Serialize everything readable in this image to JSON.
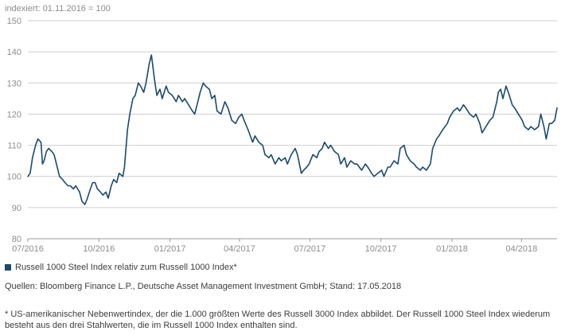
{
  "colors": {
    "line": "#1b4a6b",
    "grid": "#cfcfcf",
    "axis_text": "#8c8c8c",
    "text": "#3c3c3c"
  },
  "legend": {
    "label": "Russell 1000 Steel Index relativ zum Russell 1000 Index*"
  },
  "sources": "Quellen: Bloomberg Finance L.P., Deutsche Asset Management Investment GmbH; Stand: 17.05.2018",
  "footnote": "* US-amerikanischer Nebenwertindex, der die 1.000 größten Werte des Russell 3000 Index abbildet. Der Russell 1000 Steel Index wiederum besteht aus den drei Stahlwerten, die im Russell 1000 Index enthalten sind.",
  "chart_data": {
    "type": "line",
    "ylabel": "indexiert: 01.11.2016 = 100",
    "ylim": [
      80,
      150
    ],
    "yticks": [
      80,
      90,
      100,
      110,
      120,
      130,
      140,
      150
    ],
    "xlim": [
      "2016-07-01",
      "2018-05-17"
    ],
    "xticks": [
      {
        "label": "07/2016",
        "date": "2016-07-01"
      },
      {
        "label": "10/2016",
        "date": "2016-10-01"
      },
      {
        "label": "01/2017",
        "date": "2017-01-01"
      },
      {
        "label": "04/2017",
        "date": "2017-04-01"
      },
      {
        "label": "07/2017",
        "date": "2017-07-01"
      },
      {
        "label": "10/2017",
        "date": "2017-10-01"
      },
      {
        "label": "01/2018",
        "date": "2018-01-01"
      },
      {
        "label": "04/2018",
        "date": "2018-04-01"
      }
    ],
    "grid": "horizontal",
    "legend_position": "bottom-left",
    "series": [
      {
        "name": "Russell 1000 Steel Index relativ zum Russell 1000 Index*",
        "points": [
          [
            "2016-07-01",
            100
          ],
          [
            "2016-07-04",
            101
          ],
          [
            "2016-07-07",
            106
          ],
          [
            "2016-07-11",
            110
          ],
          [
            "2016-07-14",
            112
          ],
          [
            "2016-07-18",
            111
          ],
          [
            "2016-07-20",
            104
          ],
          [
            "2016-07-22",
            105
          ],
          [
            "2016-07-25",
            108
          ],
          [
            "2016-07-28",
            109
          ],
          [
            "2016-08-01",
            108
          ],
          [
            "2016-08-04",
            107
          ],
          [
            "2016-08-08",
            103
          ],
          [
            "2016-08-11",
            100
          ],
          [
            "2016-08-15",
            99
          ],
          [
            "2016-08-18",
            98
          ],
          [
            "2016-08-22",
            97
          ],
          [
            "2016-08-25",
            97
          ],
          [
            "2016-08-29",
            96
          ],
          [
            "2016-09-01",
            97
          ],
          [
            "2016-09-06",
            95
          ],
          [
            "2016-09-09",
            92
          ],
          [
            "2016-09-13",
            91
          ],
          [
            "2016-09-16",
            93
          ],
          [
            "2016-09-20",
            96
          ],
          [
            "2016-09-23",
            98
          ],
          [
            "2016-09-26",
            98
          ],
          [
            "2016-09-29",
            96
          ],
          [
            "2016-10-03",
            95
          ],
          [
            "2016-10-06",
            94
          ],
          [
            "2016-10-10",
            95
          ],
          [
            "2016-10-13",
            93
          ],
          [
            "2016-10-17",
            97
          ],
          [
            "2016-10-20",
            99
          ],
          [
            "2016-10-24",
            98
          ],
          [
            "2016-10-27",
            101
          ],
          [
            "2016-11-01",
            100
          ],
          [
            "2016-11-03",
            103
          ],
          [
            "2016-11-07",
            115
          ],
          [
            "2016-11-10",
            120
          ],
          [
            "2016-11-14",
            125
          ],
          [
            "2016-11-17",
            126
          ],
          [
            "2016-11-21",
            130
          ],
          [
            "2016-11-24",
            129
          ],
          [
            "2016-11-28",
            127
          ],
          [
            "2016-12-01",
            130
          ],
          [
            "2016-12-05",
            136
          ],
          [
            "2016-12-08",
            139
          ],
          [
            "2016-12-12",
            131
          ],
          [
            "2016-12-15",
            126
          ],
          [
            "2016-12-19",
            128
          ],
          [
            "2016-12-22",
            125
          ],
          [
            "2016-12-27",
            129
          ],
          [
            "2016-12-30",
            127
          ],
          [
            "2017-01-04",
            126
          ],
          [
            "2017-01-09",
            124
          ],
          [
            "2017-01-12",
            126
          ],
          [
            "2017-01-17",
            124
          ],
          [
            "2017-01-20",
            125
          ],
          [
            "2017-01-25",
            123
          ],
          [
            "2017-01-30",
            121
          ],
          [
            "2017-02-02",
            120
          ],
          [
            "2017-02-06",
            124
          ],
          [
            "2017-02-09",
            127
          ],
          [
            "2017-02-13",
            130
          ],
          [
            "2017-02-16",
            129
          ],
          [
            "2017-02-21",
            128
          ],
          [
            "2017-02-24",
            125
          ],
          [
            "2017-02-28",
            126
          ],
          [
            "2017-03-03",
            121
          ],
          [
            "2017-03-08",
            120
          ],
          [
            "2017-03-13",
            124
          ],
          [
            "2017-03-17",
            122
          ],
          [
            "2017-03-22",
            118
          ],
          [
            "2017-03-27",
            117
          ],
          [
            "2017-03-31",
            119
          ],
          [
            "2017-04-04",
            120
          ],
          [
            "2017-04-07",
            118
          ],
          [
            "2017-04-12",
            115
          ],
          [
            "2017-04-18",
            111
          ],
          [
            "2017-04-21",
            113
          ],
          [
            "2017-04-26",
            111
          ],
          [
            "2017-05-01",
            110
          ],
          [
            "2017-05-04",
            107
          ],
          [
            "2017-05-09",
            106
          ],
          [
            "2017-05-12",
            107
          ],
          [
            "2017-05-17",
            104
          ],
          [
            "2017-05-22",
            106
          ],
          [
            "2017-05-25",
            105
          ],
          [
            "2017-05-30",
            106
          ],
          [
            "2017-06-02",
            104
          ],
          [
            "2017-06-07",
            107
          ],
          [
            "2017-06-12",
            109
          ],
          [
            "2017-06-15",
            107
          ],
          [
            "2017-06-20",
            101
          ],
          [
            "2017-06-23",
            102
          ],
          [
            "2017-06-27",
            103
          ],
          [
            "2017-06-30",
            104
          ],
          [
            "2017-07-05",
            107
          ],
          [
            "2017-07-10",
            106
          ],
          [
            "2017-07-13",
            108
          ],
          [
            "2017-07-17",
            109
          ],
          [
            "2017-07-20",
            111
          ],
          [
            "2017-07-25",
            109
          ],
          [
            "2017-07-28",
            110
          ],
          [
            "2017-08-02",
            108
          ],
          [
            "2017-08-07",
            107
          ],
          [
            "2017-08-10",
            104
          ],
          [
            "2017-08-15",
            106
          ],
          [
            "2017-08-18",
            103
          ],
          [
            "2017-08-23",
            105
          ],
          [
            "2017-08-28",
            104
          ],
          [
            "2017-08-31",
            104
          ],
          [
            "2017-09-06",
            102
          ],
          [
            "2017-09-11",
            104
          ],
          [
            "2017-09-14",
            103
          ],
          [
            "2017-09-19",
            101
          ],
          [
            "2017-09-22",
            100
          ],
          [
            "2017-09-27",
            101
          ],
          [
            "2017-10-02",
            102
          ],
          [
            "2017-10-05",
            100
          ],
          [
            "2017-10-10",
            103
          ],
          [
            "2017-10-13",
            103
          ],
          [
            "2017-10-18",
            105
          ],
          [
            "2017-10-23",
            104
          ],
          [
            "2017-10-26",
            109
          ],
          [
            "2017-10-31",
            110
          ],
          [
            "2017-11-03",
            107
          ],
          [
            "2017-11-08",
            105
          ],
          [
            "2017-11-13",
            104
          ],
          [
            "2017-11-16",
            103
          ],
          [
            "2017-11-21",
            102
          ],
          [
            "2017-11-24",
            103
          ],
          [
            "2017-11-29",
            102
          ],
          [
            "2017-12-04",
            104
          ],
          [
            "2017-12-07",
            109
          ],
          [
            "2017-12-12",
            112
          ],
          [
            "2017-12-15",
            113
          ],
          [
            "2017-12-20",
            115
          ],
          [
            "2017-12-26",
            117
          ],
          [
            "2017-12-29",
            119
          ],
          [
            "2018-01-03",
            121
          ],
          [
            "2018-01-08",
            122
          ],
          [
            "2018-01-11",
            121
          ],
          [
            "2018-01-16",
            123
          ],
          [
            "2018-01-19",
            122
          ],
          [
            "2018-01-24",
            120
          ],
          [
            "2018-01-29",
            119
          ],
          [
            "2018-02-01",
            120
          ],
          [
            "2018-02-06",
            117
          ],
          [
            "2018-02-09",
            114
          ],
          [
            "2018-02-14",
            116
          ],
          [
            "2018-02-19",
            118
          ],
          [
            "2018-02-23",
            119
          ],
          [
            "2018-02-28",
            124
          ],
          [
            "2018-03-02",
            127
          ],
          [
            "2018-03-05",
            128
          ],
          [
            "2018-03-08",
            125
          ],
          [
            "2018-03-12",
            129
          ],
          [
            "2018-03-15",
            127
          ],
          [
            "2018-03-20",
            123
          ],
          [
            "2018-03-23",
            122
          ],
          [
            "2018-03-28",
            120
          ],
          [
            "2018-04-02",
            118
          ],
          [
            "2018-04-05",
            116
          ],
          [
            "2018-04-10",
            115
          ],
          [
            "2018-04-13",
            116
          ],
          [
            "2018-04-18",
            115
          ],
          [
            "2018-04-23",
            116
          ],
          [
            "2018-04-26",
            120
          ],
          [
            "2018-04-30",
            116
          ],
          [
            "2018-05-03",
            112
          ],
          [
            "2018-05-07",
            117
          ],
          [
            "2018-05-10",
            117
          ],
          [
            "2018-05-14",
            118
          ],
          [
            "2018-05-17",
            122
          ]
        ]
      }
    ]
  }
}
